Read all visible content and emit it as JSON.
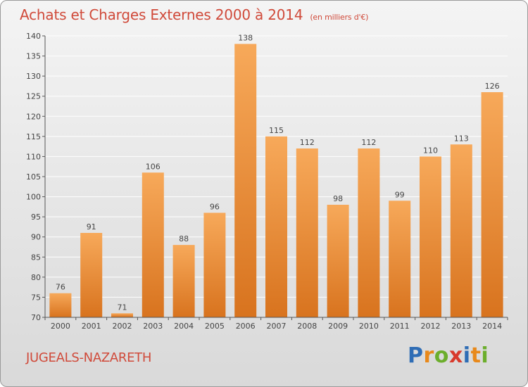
{
  "header": {
    "title": "Achats et Charges Externes 2000 à 2014",
    "subtitle": "(en milliers d'€)"
  },
  "footer": {
    "commune": "JUGEALS-NAZARETH",
    "brand_letters": [
      "P",
      "r",
      "o",
      "x",
      "i",
      "t",
      "i"
    ],
    "brand_colors": [
      "#2f6db5",
      "#e8891b",
      "#6cae2c",
      "#d83a2c",
      "#2f6db5",
      "#e8891b",
      "#6cae2c"
    ]
  },
  "chart_data": {
    "type": "bar",
    "title": "Achats et Charges Externes 2000 à 2014",
    "subtitle": "(en milliers d'€)",
    "xlabel": "",
    "ylabel": "",
    "categories": [
      "2000",
      "2001",
      "2002",
      "2003",
      "2004",
      "2005",
      "2006",
      "2007",
      "2008",
      "2009",
      "2010",
      "2011",
      "2012",
      "2013",
      "2014"
    ],
    "values": [
      76,
      91,
      71,
      106,
      88,
      96,
      138,
      115,
      112,
      98,
      112,
      99,
      110,
      113,
      126
    ],
    "ylim": [
      70,
      140
    ],
    "yticks": [
      70,
      75,
      80,
      85,
      90,
      95,
      100,
      105,
      110,
      115,
      120,
      125,
      130,
      135,
      140
    ],
    "grid": true,
    "colors": {
      "bar_top": "#f7a95a",
      "bar_bottom": "#d8731e",
      "grid": "#ffffff",
      "axis": "#555555"
    }
  }
}
